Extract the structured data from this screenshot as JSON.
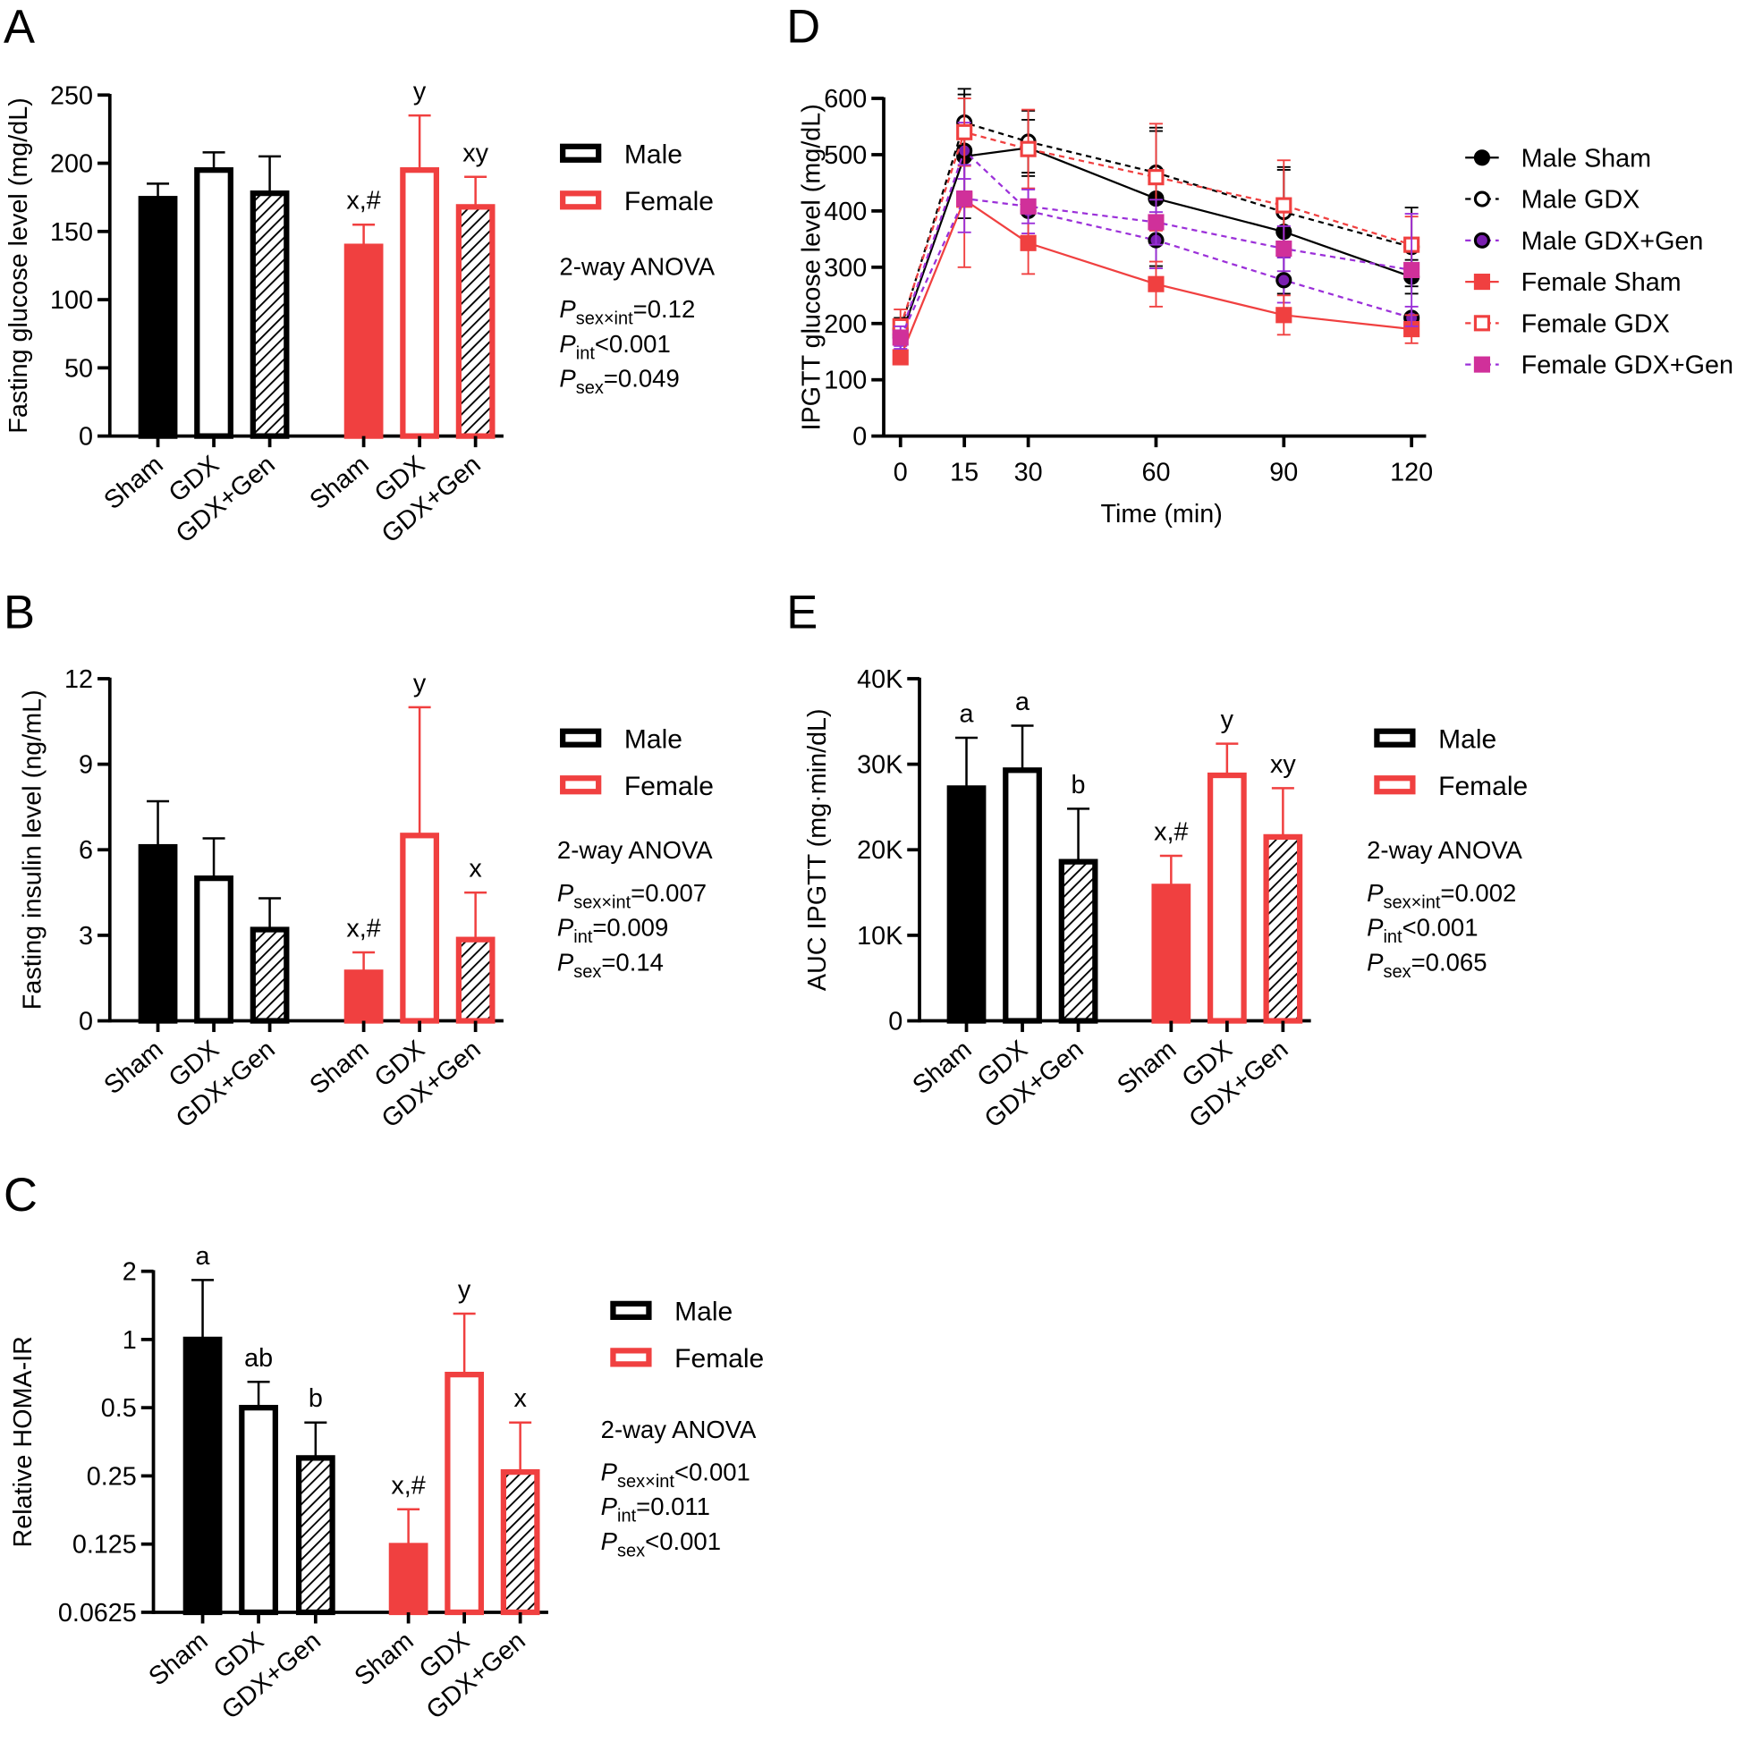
{
  "chart_data": [
    {
      "type": "bar",
      "panel": "A",
      "ylabel": "Fasting glucose level (mg/dL)",
      "categories": [
        "Sham",
        "GDX",
        "GDX+Gen"
      ],
      "fills": [
        "solid",
        "none",
        "hatch"
      ],
      "ylim": [
        0,
        250
      ],
      "yticks": [
        0,
        50,
        100,
        150,
        200,
        250
      ],
      "series": [
        {
          "name": "Male",
          "color": "#000000",
          "values": [
            174,
            195,
            178
          ],
          "errors": [
            11,
            13,
            27
          ],
          "annotations": [
            null,
            null,
            null
          ]
        },
        {
          "name": "Female",
          "color": "#f04040",
          "values": [
            139,
            195,
            168
          ],
          "errors": [
            16,
            40,
            22
          ],
          "annotations": [
            "x,#",
            "y",
            "xy"
          ]
        }
      ],
      "stats": {
        "title": "2-way ANOVA",
        "lines": [
          {
            "symbol": "P",
            "sub": "sex×int",
            "text": "=0.12"
          },
          {
            "symbol": "P",
            "sub": "int",
            "text": "<0.001"
          },
          {
            "symbol": "P",
            "sub": "sex",
            "text": "=0.049"
          }
        ]
      }
    },
    {
      "type": "bar",
      "panel": "B",
      "ylabel": "Fasting insulin level (ng/mL)",
      "categories": [
        "Sham",
        "GDX",
        "GDX+Gen"
      ],
      "fills": [
        "solid",
        "none",
        "hatch"
      ],
      "ylim": [
        0,
        12
      ],
      "yticks": [
        0,
        3,
        6,
        9,
        12
      ],
      "series": [
        {
          "name": "Male",
          "color": "#000000",
          "values": [
            6.1,
            5.0,
            3.2
          ],
          "errors": [
            1.6,
            1.4,
            1.1
          ],
          "annotations": [
            null,
            null,
            null
          ]
        },
        {
          "name": "Female",
          "color": "#f04040",
          "values": [
            1.7,
            6.5,
            2.85
          ],
          "errors": [
            0.7,
            4.5,
            1.65
          ],
          "annotations": [
            "x,#",
            "y",
            "x"
          ]
        }
      ],
      "stats": {
        "title": "2-way ANOVA",
        "lines": [
          {
            "symbol": "P",
            "sub": "sex×int",
            "text": "=0.007"
          },
          {
            "symbol": "P",
            "sub": "int",
            "text": "=0.009"
          },
          {
            "symbol": "P",
            "sub": "sex",
            "text": "=0.14"
          }
        ]
      }
    },
    {
      "type": "bar",
      "panel": "C",
      "ylabel": "Relative HOMA-IR",
      "yscale": "log",
      "categories": [
        "Sham",
        "GDX",
        "GDX+Gen"
      ],
      "fills": [
        "solid",
        "none",
        "hatch"
      ],
      "ylim": [
        0.0625,
        2
      ],
      "yticks": [
        0.0625,
        0.125,
        0.25,
        0.5,
        1,
        2
      ],
      "series": [
        {
          "name": "Male",
          "color": "#000000",
          "values": [
            1.0,
            0.5,
            0.3
          ],
          "errors": [
            0.83,
            0.15,
            0.13
          ],
          "annotations": [
            "a",
            "ab",
            "b"
          ]
        },
        {
          "name": "Female",
          "color": "#f04040",
          "values": [
            0.123,
            0.7,
            0.26
          ],
          "errors": [
            0.055,
            0.6,
            0.17
          ],
          "annotations": [
            "x,#",
            "y",
            "x"
          ]
        }
      ],
      "stats": {
        "title": "2-way ANOVA",
        "lines": [
          {
            "symbol": "P",
            "sub": "sex×int",
            "text": "<0.001"
          },
          {
            "symbol": "P",
            "sub": "int",
            "text": "=0.011"
          },
          {
            "symbol": "P",
            "sub": "sex",
            "text": "<0.001"
          }
        ]
      }
    },
    {
      "type": "line",
      "panel": "D",
      "ylabel": "IPGTT glucose level (mg/dL)",
      "xlabel": "Time (min)",
      "x": [
        0,
        15,
        30,
        60,
        90,
        120
      ],
      "xlim": [
        0,
        120
      ],
      "xticks": [
        0,
        15,
        30,
        60,
        90,
        120
      ],
      "ylim": [
        0,
        600
      ],
      "yticks": [
        0,
        100,
        200,
        300,
        400,
        500,
        600
      ],
      "series": [
        {
          "name": "Male Sham",
          "color": "#000000",
          "marker": "circle",
          "marker_fill": "#000000",
          "dashed": false,
          "values": [
            175,
            497,
            512,
            422,
            363,
            283
          ],
          "errors": [
            25,
            110,
            50,
            120,
            110,
            30
          ]
        },
        {
          "name": "Male GDX",
          "color": "#000000",
          "marker": "circle",
          "marker_fill": "#ffffff",
          "dashed": true,
          "values": [
            190,
            557,
            523,
            468,
            398,
            336
          ],
          "errors": [
            20,
            60,
            55,
            80,
            80,
            70
          ]
        },
        {
          "name": "Male GDX+Gen",
          "color": "#9b30d9",
          "marker": "circle",
          "marker_fill": "#7a1fb0",
          "dashed": true,
          "values": [
            180,
            507,
            400,
            348,
            277,
            210
          ],
          "errors": [
            20,
            50,
            40,
            50,
            40,
            20
          ]
        },
        {
          "name": "Female Sham",
          "color": "#f04040",
          "marker": "square",
          "marker_fill": "#f04040",
          "dashed": false,
          "values": [
            140,
            420,
            343,
            270,
            215,
            190
          ],
          "errors": [
            10,
            120,
            55,
            40,
            35,
            25
          ]
        },
        {
          "name": "Female GDX",
          "color": "#f04040",
          "marker": "square",
          "marker_fill": "#ffffff",
          "dashed": true,
          "values": [
            195,
            540,
            510,
            460,
            410,
            340
          ],
          "errors": [
            30,
            60,
            70,
            95,
            80,
            50
          ]
        },
        {
          "name": "Female GDX+Gen",
          "color": "#9b30d9",
          "marker": "square",
          "marker_fill": "#d0309a",
          "dashed": true,
          "values": [
            175,
            422,
            408,
            380,
            333,
            295
          ],
          "errors": [
            20,
            60,
            30,
            40,
            40,
            100
          ]
        }
      ]
    },
    {
      "type": "bar",
      "panel": "E",
      "ylabel": "AUC IPGTT (mg·min/dL)",
      "categories": [
        "Sham",
        "GDX",
        "GDX+Gen"
      ],
      "fills": [
        "solid",
        "none",
        "hatch"
      ],
      "ylim": [
        0,
        40000
      ],
      "yticks": [
        0,
        {
          "value": 10000,
          "label": "10K"
        },
        {
          "value": 20000,
          "label": "20K"
        },
        {
          "value": 30000,
          "label": "30K"
        },
        {
          "value": 40000,
          "label": "40K"
        }
      ],
      "series": [
        {
          "name": "Male",
          "color": "#000000",
          "values": [
            27200,
            29300,
            18600
          ],
          "errors": [
            5900,
            5200,
            6200
          ],
          "annotations": [
            "a",
            "a",
            "b"
          ]
        },
        {
          "name": "Female",
          "color": "#f04040",
          "values": [
            15700,
            28700,
            21500
          ],
          "errors": [
            3600,
            3700,
            5700
          ],
          "annotations": [
            "x,#",
            "y",
            "xy"
          ]
        }
      ],
      "stats": {
        "title": "2-way ANOVA",
        "lines": [
          {
            "symbol": "P",
            "sub": "sex×int",
            "text": "=0.002"
          },
          {
            "symbol": "P",
            "sub": "int",
            "text": "<0.001"
          },
          {
            "symbol": "P",
            "sub": "sex",
            "text": "=0.065"
          }
        ]
      }
    }
  ]
}
